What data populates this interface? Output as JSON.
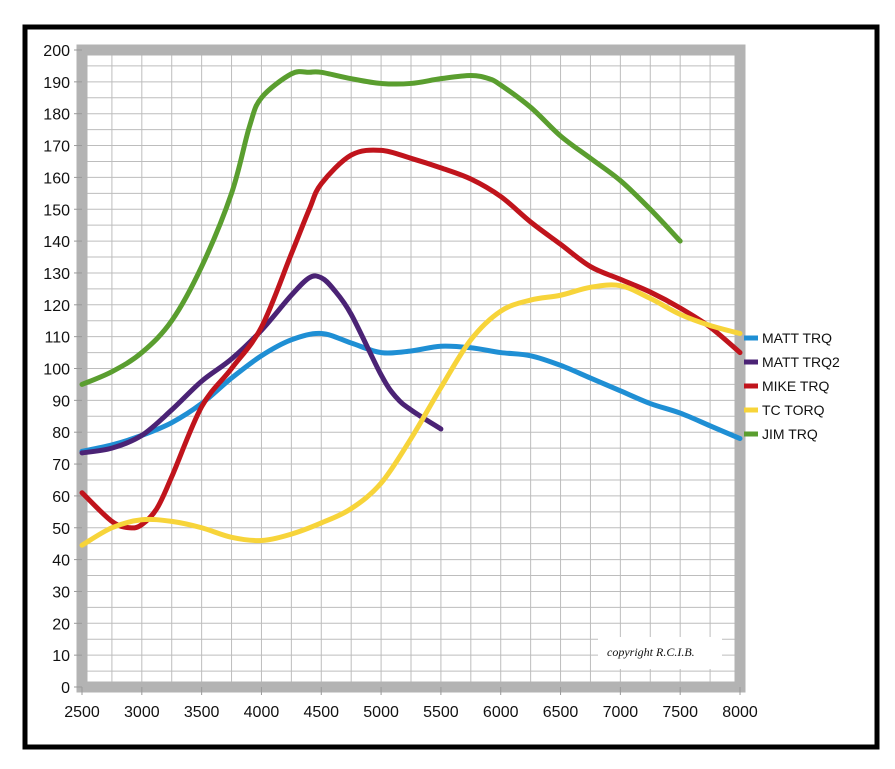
{
  "chart_data": {
    "type": "line",
    "title": "",
    "xlabel": "",
    "ylabel": "",
    "xlim": [
      2500,
      8000
    ],
    "ylim": [
      0,
      200
    ],
    "x_ticks": [
      2500,
      3000,
      3500,
      4000,
      4500,
      5000,
      5500,
      6000,
      6500,
      7000,
      7500,
      8000
    ],
    "y_ticks": [
      0,
      10,
      20,
      30,
      40,
      50,
      60,
      70,
      80,
      90,
      100,
      110,
      120,
      130,
      140,
      150,
      160,
      170,
      180,
      190,
      200
    ],
    "grid": true,
    "legend_position": "right",
    "annotation": "copyright R.C.I.B.",
    "series": [
      {
        "name": "MATT TRQ",
        "color": "#1f8fd4",
        "x": [
          2500,
          2750,
          3000,
          3250,
          3500,
          3750,
          4000,
          4250,
          4500,
          4750,
          5000,
          5250,
          5500,
          5750,
          6000,
          6250,
          6500,
          6750,
          7000,
          7250,
          7500,
          7750,
          8000
        ],
        "y": [
          74,
          76,
          79,
          83,
          89,
          97,
          104,
          109,
          111,
          108,
          105,
          105.5,
          107,
          106.5,
          105,
          104,
          101,
          97,
          93,
          89,
          86,
          82,
          78
        ]
      },
      {
        "name": "MATT TRQ2",
        "color": "#4b2375",
        "x": [
          2500,
          2750,
          3000,
          3250,
          3500,
          3750,
          4000,
          4250,
          4400,
          4500,
          4600,
          4750,
          5000,
          5125,
          5250,
          5500
        ],
        "y": [
          73.5,
          75,
          79,
          87,
          96,
          103,
          112,
          123,
          128.5,
          128.5,
          125,
          117,
          98,
          91,
          87,
          81
        ]
      },
      {
        "name": "MIKE TRQ",
        "color": "#c0141c",
        "x": [
          2500,
          2750,
          2900,
          3000,
          3125,
          3250,
          3500,
          3750,
          4000,
          4250,
          4400,
          4500,
          4750,
          5000,
          5250,
          5500,
          5750,
          6000,
          6250,
          6500,
          6750,
          7000,
          7250,
          7500,
          7750,
          8000
        ],
        "y": [
          61,
          52,
          50,
          51,
          56,
          66,
          88,
          100,
          113,
          136,
          150,
          158,
          167,
          168.5,
          166,
          163,
          159.5,
          154,
          146,
          139,
          132,
          128,
          124,
          119,
          113,
          105
        ]
      },
      {
        "name": "TC TORQ",
        "color": "#f7d43a",
        "x": [
          2500,
          2750,
          3000,
          3250,
          3500,
          3750,
          4000,
          4250,
          4500,
          4750,
          5000,
          5250,
          5500,
          5750,
          6000,
          6250,
          6500,
          6750,
          7000,
          7250,
          7500,
          7750,
          8000
        ],
        "y": [
          44.5,
          50,
          52.5,
          52,
          50,
          47,
          46,
          48,
          51.5,
          56,
          64,
          78,
          94,
          109,
          118,
          121.5,
          123,
          125.5,
          126,
          122,
          117,
          113.5,
          111
        ]
      },
      {
        "name": "JIM TRQ",
        "color": "#5a9e2f",
        "x": [
          2500,
          2750,
          3000,
          3250,
          3500,
          3750,
          3900,
          4000,
          4250,
          4400,
          4500,
          4750,
          5000,
          5250,
          5500,
          5750,
          5900,
          6000,
          6250,
          6500,
          6750,
          7000,
          7250,
          7500
        ],
        "y": [
          95,
          99,
          105,
          115,
          132,
          155,
          176,
          185,
          192.5,
          193,
          193,
          191,
          189.5,
          189.5,
          191,
          192,
          191,
          189,
          182,
          173,
          166,
          159,
          150,
          140
        ]
      }
    ]
  }
}
